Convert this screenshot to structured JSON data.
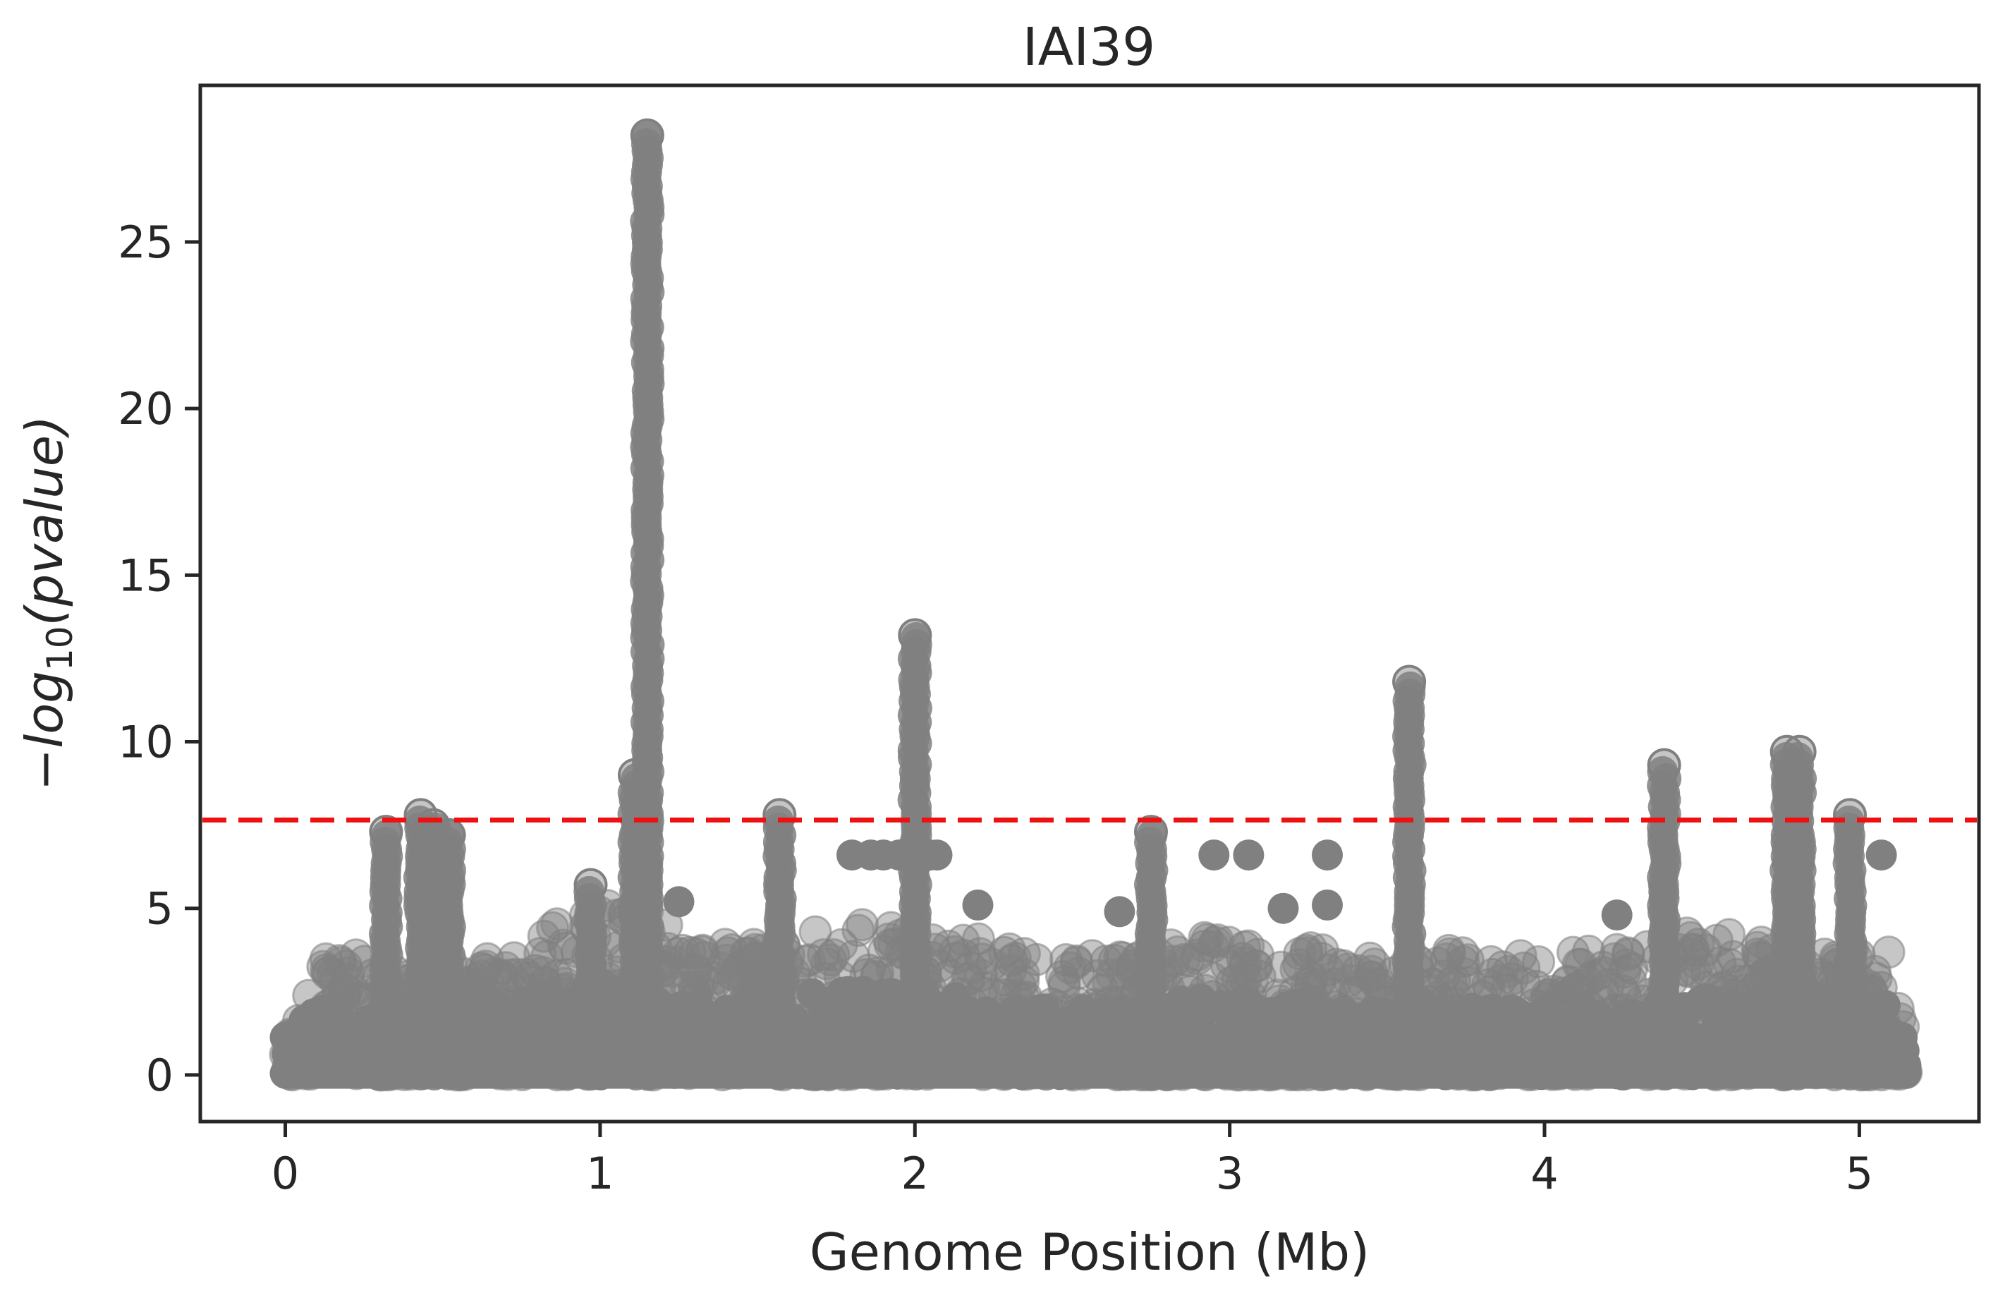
{
  "chart_data": {
    "type": "scatter",
    "title": "IAI39",
    "xlabel": "Genome Position (Mb)",
    "ylabel": {
      "prefix": "−",
      "main": "log",
      "subscript": "10",
      "suffix": "(pvalue)"
    },
    "xlim": [
      -0.27,
      5.38
    ],
    "ylim": [
      -1.4,
      29.7
    ],
    "xticks": [
      0,
      1,
      2,
      3,
      4,
      5
    ],
    "xtick_labels": [
      "0",
      "1",
      "2",
      "3",
      "4",
      "5"
    ],
    "yticks": [
      0,
      5,
      10,
      15,
      20,
      25
    ],
    "ytick_labels": [
      "0",
      "5",
      "10",
      "15",
      "20",
      "25"
    ],
    "grid": false,
    "legend": "none",
    "marker_color": "#808080",
    "marker_alpha": 0.45,
    "threshold": {
      "value": 7.65,
      "color": "#ee1111",
      "style": "dashed"
    },
    "baseline_band": {
      "x_range": [
        0.0,
        5.15
      ],
      "profile": [
        [
          0.0,
          2.1
        ],
        [
          0.05,
          2.8
        ],
        [
          0.1,
          4.1
        ],
        [
          0.2,
          3.8
        ],
        [
          0.3,
          3.2
        ],
        [
          0.45,
          3.6
        ],
        [
          0.6,
          3.4
        ],
        [
          0.8,
          4.4
        ],
        [
          0.95,
          4.8
        ],
        [
          1.0,
          5.2
        ],
        [
          1.2,
          4.9
        ],
        [
          1.3,
          3.9
        ],
        [
          1.5,
          4.0
        ],
        [
          1.7,
          4.5
        ],
        [
          1.9,
          4.7
        ],
        [
          2.05,
          4.5
        ],
        [
          2.2,
          4.4
        ],
        [
          2.3,
          3.8
        ],
        [
          2.5,
          3.7
        ],
        [
          2.7,
          3.5
        ],
        [
          2.9,
          4.3
        ],
        [
          3.1,
          4.0
        ],
        [
          3.3,
          3.8
        ],
        [
          3.5,
          3.4
        ],
        [
          3.7,
          3.8
        ],
        [
          3.9,
          3.6
        ],
        [
          4.1,
          3.7
        ],
        [
          4.3,
          3.9
        ],
        [
          4.5,
          4.4
        ],
        [
          4.7,
          4.0
        ],
        [
          4.9,
          3.8
        ],
        [
          5.1,
          3.9
        ],
        [
          5.15,
          1.5
        ]
      ]
    },
    "peaks": [
      {
        "x": 0.32,
        "ymax": 7.3
      },
      {
        "x": 0.43,
        "ymax": 7.8
      },
      {
        "x": 0.47,
        "ymax": 7.5
      },
      {
        "x": 0.52,
        "ymax": 7.2
      },
      {
        "x": 0.97,
        "ymax": 5.7
      },
      {
        "x": 1.11,
        "ymax": 9.0
      },
      {
        "x": 1.15,
        "ymax": 28.2
      },
      {
        "x": 1.57,
        "ymax": 7.8
      },
      {
        "x": 2.0,
        "ymax": 13.2
      },
      {
        "x": 2.75,
        "ymax": 7.3
      },
      {
        "x": 3.57,
        "ymax": 11.8
      },
      {
        "x": 4.38,
        "ymax": 9.3
      },
      {
        "x": 4.77,
        "ymax": 9.7
      },
      {
        "x": 4.81,
        "ymax": 9.7
      },
      {
        "x": 4.97,
        "ymax": 7.8
      }
    ],
    "isolated_points": [
      {
        "x": 1.8,
        "y": 6.6
      },
      {
        "x": 1.86,
        "y": 6.6
      },
      {
        "x": 1.9,
        "y": 6.6
      },
      {
        "x": 1.95,
        "y": 6.6
      },
      {
        "x": 2.05,
        "y": 6.6
      },
      {
        "x": 2.07,
        "y": 6.6
      },
      {
        "x": 2.95,
        "y": 6.6
      },
      {
        "x": 3.06,
        "y": 6.6
      },
      {
        "x": 3.31,
        "y": 6.6
      },
      {
        "x": 3.31,
        "y": 5.1
      },
      {
        "x": 5.07,
        "y": 6.6
      },
      {
        "x": 2.65,
        "y": 4.9
      },
      {
        "x": 3.17,
        "y": 5.0
      },
      {
        "x": 4.23,
        "y": 4.8
      },
      {
        "x": 1.25,
        "y": 5.2
      },
      {
        "x": 2.2,
        "y": 5.1
      }
    ]
  }
}
